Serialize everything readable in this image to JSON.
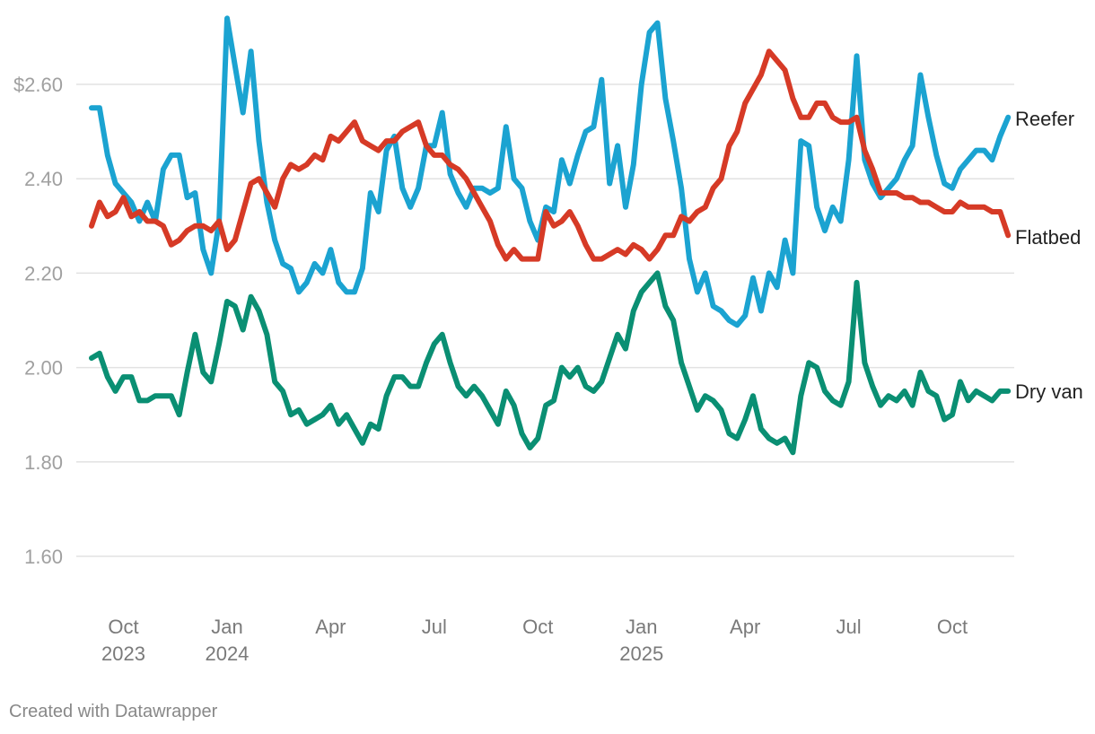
{
  "chart_data": {
    "type": "line",
    "title": "",
    "xlabel": "",
    "ylabel": "",
    "ylim": [
      1.55,
      2.76
    ],
    "yticks": [
      {
        "value": 2.6,
        "label": "$2.60"
      },
      {
        "value": 2.4,
        "label": "2.40"
      },
      {
        "value": 2.2,
        "label": "2.20"
      },
      {
        "value": 2.0,
        "label": "2.00"
      },
      {
        "value": 1.8,
        "label": "1.80"
      },
      {
        "value": 1.6,
        "label": "1.60"
      }
    ],
    "xticks": [
      {
        "week": 4,
        "label": "Oct",
        "year": "2023"
      },
      {
        "week": 17,
        "label": "Jan",
        "year": "2024"
      },
      {
        "week": 30,
        "label": "Apr",
        "year": ""
      },
      {
        "week": 43,
        "label": "Jul",
        "year": ""
      },
      {
        "week": 56,
        "label": "Oct",
        "year": ""
      },
      {
        "week": 69,
        "label": "Jan",
        "year": "2025"
      },
      {
        "week": 82,
        "label": "Apr",
        "year": ""
      },
      {
        "week": 95,
        "label": "Jul",
        "year": ""
      },
      {
        "week": 108,
        "label": "Oct",
        "year": ""
      }
    ],
    "x_start": "2023-09-01",
    "x_unit": "week",
    "series": [
      {
        "name": "Reefer",
        "color": "#1ba3d1",
        "values": [
          2.55,
          2.55,
          2.45,
          2.39,
          2.37,
          2.35,
          2.31,
          2.35,
          2.31,
          2.42,
          2.45,
          2.45,
          2.36,
          2.37,
          2.25,
          2.2,
          2.31,
          2.74,
          2.64,
          2.54,
          2.67,
          2.48,
          2.35,
          2.27,
          2.22,
          2.21,
          2.16,
          2.18,
          2.22,
          2.2,
          2.25,
          2.18,
          2.16,
          2.16,
          2.21,
          2.37,
          2.33,
          2.46,
          2.49,
          2.38,
          2.34,
          2.38,
          2.47,
          2.47,
          2.54,
          2.41,
          2.37,
          2.34,
          2.38,
          2.38,
          2.37,
          2.38,
          2.51,
          2.4,
          2.38,
          2.31,
          2.27,
          2.34,
          2.33,
          2.44,
          2.39,
          2.45,
          2.5,
          2.51,
          2.61,
          2.39,
          2.47,
          2.34,
          2.43,
          2.6,
          2.71,
          2.73,
          2.57,
          2.48,
          2.38,
          2.23,
          2.16,
          2.2,
          2.13,
          2.12,
          2.1,
          2.09,
          2.11,
          2.19,
          2.12,
          2.2,
          2.17,
          2.27,
          2.2,
          2.48,
          2.47,
          2.34,
          2.29,
          2.34,
          2.31,
          2.44,
          2.66,
          2.44,
          2.39,
          2.36,
          2.38,
          2.4,
          2.44,
          2.47,
          2.62,
          2.53,
          2.45,
          2.39,
          2.38,
          2.42,
          2.44,
          2.46,
          2.46,
          2.44,
          2.49,
          2.53
        ]
      },
      {
        "name": "Flatbed",
        "color": "#d63a26",
        "values": [
          2.3,
          2.35,
          2.32,
          2.33,
          2.36,
          2.32,
          2.33,
          2.31,
          2.31,
          2.3,
          2.26,
          2.27,
          2.29,
          2.3,
          2.3,
          2.29,
          2.31,
          2.25,
          2.27,
          2.33,
          2.39,
          2.4,
          2.37,
          2.34,
          2.4,
          2.43,
          2.42,
          2.43,
          2.45,
          2.44,
          2.49,
          2.48,
          2.5,
          2.52,
          2.48,
          2.47,
          2.46,
          2.48,
          2.48,
          2.5,
          2.51,
          2.52,
          2.47,
          2.45,
          2.45,
          2.43,
          2.42,
          2.4,
          2.37,
          2.34,
          2.31,
          2.26,
          2.23,
          2.25,
          2.23,
          2.23,
          2.23,
          2.33,
          2.3,
          2.31,
          2.33,
          2.3,
          2.26,
          2.23,
          2.23,
          2.24,
          2.25,
          2.24,
          2.26,
          2.25,
          2.23,
          2.25,
          2.28,
          2.28,
          2.32,
          2.31,
          2.33,
          2.34,
          2.38,
          2.4,
          2.47,
          2.5,
          2.56,
          2.59,
          2.62,
          2.67,
          2.65,
          2.63,
          2.57,
          2.53,
          2.53,
          2.56,
          2.56,
          2.53,
          2.52,
          2.52,
          2.53,
          2.46,
          2.42,
          2.37,
          2.37,
          2.37,
          2.36,
          2.36,
          2.35,
          2.35,
          2.34,
          2.33,
          2.33,
          2.35,
          2.34,
          2.34,
          2.34,
          2.33,
          2.33,
          2.28
        ]
      },
      {
        "name": "Dry van",
        "color": "#0a8f73",
        "values": [
          2.02,
          2.03,
          1.98,
          1.95,
          1.98,
          1.98,
          1.93,
          1.93,
          1.94,
          1.94,
          1.94,
          1.9,
          1.99,
          2.07,
          1.99,
          1.97,
          2.05,
          2.14,
          2.13,
          2.08,
          2.15,
          2.12,
          2.07,
          1.97,
          1.95,
          1.9,
          1.91,
          1.88,
          1.89,
          1.9,
          1.92,
          1.88,
          1.9,
          1.87,
          1.84,
          1.88,
          1.87,
          1.94,
          1.98,
          1.98,
          1.96,
          1.96,
          2.01,
          2.05,
          2.07,
          2.01,
          1.96,
          1.94,
          1.96,
          1.94,
          1.91,
          1.88,
          1.95,
          1.92,
          1.86,
          1.83,
          1.85,
          1.92,
          1.93,
          2.0,
          1.98,
          2.0,
          1.96,
          1.95,
          1.97,
          2.02,
          2.07,
          2.04,
          2.12,
          2.16,
          2.18,
          2.2,
          2.13,
          2.1,
          2.01,
          1.96,
          1.91,
          1.94,
          1.93,
          1.91,
          1.86,
          1.85,
          1.89,
          1.94,
          1.87,
          1.85,
          1.84,
          1.85,
          1.82,
          1.94,
          2.01,
          2.0,
          1.95,
          1.93,
          1.92,
          1.97,
          2.18,
          2.01,
          1.96,
          1.92,
          1.94,
          1.93,
          1.95,
          1.92,
          1.99,
          1.95,
          1.94,
          1.89,
          1.9,
          1.97,
          1.93,
          1.95,
          1.94,
          1.93,
          1.95,
          1.95
        ]
      }
    ]
  },
  "footer": {
    "credit": "Created with Datawrapper"
  }
}
